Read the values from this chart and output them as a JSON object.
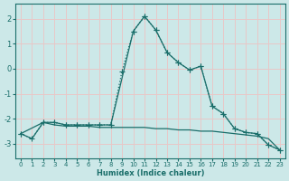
{
  "xlabel": "Humidex (Indice chaleur)",
  "bg_color": "#cce8e8",
  "grid_color": "#e8c8c8",
  "line_color": "#1a6e6a",
  "xlim": [
    -0.5,
    23.5
  ],
  "ylim": [
    -3.6,
    2.6
  ],
  "yticks": [
    -3,
    -2,
    -1,
    0,
    1,
    2
  ],
  "xticks": [
    0,
    1,
    2,
    3,
    4,
    5,
    6,
    7,
    8,
    9,
    10,
    11,
    12,
    13,
    14,
    15,
    16,
    17,
    18,
    19,
    20,
    21,
    22,
    23
  ],
  "series_dotted_x": [
    0,
    1,
    2,
    3,
    4,
    5,
    6,
    7,
    8,
    9,
    10,
    11,
    12,
    13,
    14,
    15,
    16,
    17,
    18,
    19,
    20,
    21,
    22,
    23
  ],
  "series_dotted_y": [
    -2.6,
    -2.8,
    -2.15,
    -2.15,
    -2.25,
    -2.25,
    -2.25,
    -2.25,
    -2.25,
    -0.1,
    1.5,
    2.1,
    1.55,
    0.65,
    0.25,
    -0.05,
    0.1,
    -1.5,
    -1.8,
    -2.4,
    -2.55,
    -2.6,
    -3.05,
    -3.25
  ],
  "series_flat_x": [
    0,
    1,
    2,
    3,
    4,
    5,
    6,
    7,
    8,
    9,
    10,
    11,
    12,
    13,
    14,
    15,
    16,
    17,
    18,
    19,
    20,
    21,
    22,
    23
  ],
  "series_flat_y": [
    -2.6,
    -2.8,
    -2.15,
    -2.25,
    -2.3,
    -2.3,
    -2.3,
    -2.35,
    -2.35,
    -2.35,
    -2.35,
    -2.35,
    -2.4,
    -2.4,
    -2.45,
    -2.45,
    -2.5,
    -2.5,
    -2.55,
    -2.6,
    -2.65,
    -2.7,
    -2.8,
    -3.25
  ],
  "series_solid_x": [
    0,
    2,
    3,
    4,
    5,
    6,
    7,
    8,
    10,
    11,
    12,
    13,
    14,
    15,
    16,
    17,
    18,
    19,
    20,
    21,
    22,
    23
  ],
  "series_solid_y": [
    -2.6,
    -2.15,
    -2.15,
    -2.25,
    -2.25,
    -2.25,
    -2.25,
    -2.25,
    1.5,
    2.1,
    1.55,
    0.65,
    0.25,
    -0.05,
    0.1,
    -1.5,
    -1.8,
    -2.4,
    -2.55,
    -2.6,
    -3.05,
    -3.25
  ]
}
